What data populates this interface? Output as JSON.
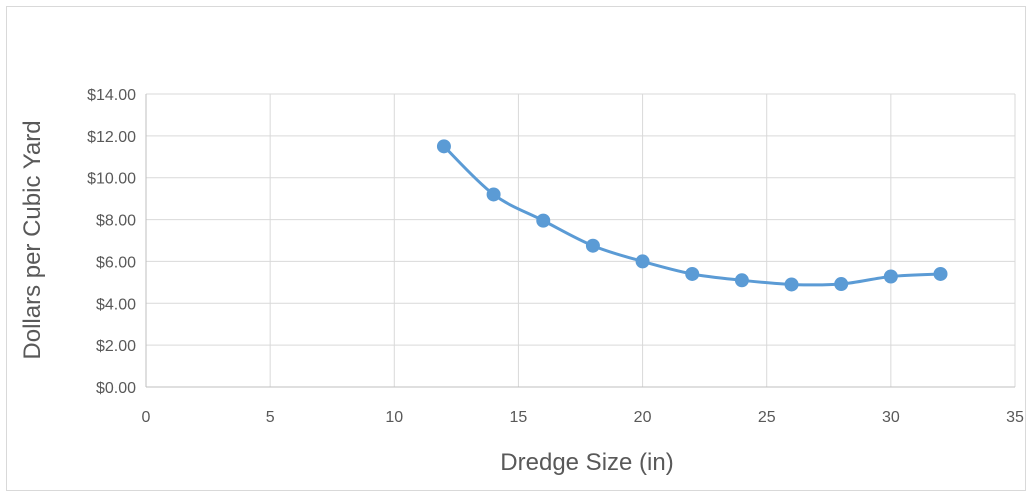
{
  "chart_data": {
    "type": "scatter",
    "title": "",
    "xlabel": "Dredge Size (in)",
    "ylabel": "Dollars per Cubic Yard",
    "xlim": [
      0,
      35
    ],
    "ylim": [
      0,
      14
    ],
    "x_ticks": [
      "0",
      "5",
      "10",
      "15",
      "20",
      "25",
      "30",
      "35"
    ],
    "y_ticks": [
      "$0.00",
      "$2.00",
      "$4.00",
      "$6.00",
      "$8.00",
      "$10.00",
      "$12.00",
      "$14.00"
    ],
    "grid": true,
    "legend": "none",
    "line_color": "#5B9BD5",
    "series": [
      {
        "x": [
          12,
          14,
          16,
          18,
          20,
          22,
          24,
          26,
          28,
          30,
          32
        ],
        "values": [
          11.5,
          9.2,
          7.95,
          6.75,
          6.0,
          5.4,
          5.1,
          4.9,
          4.92,
          5.28,
          5.4
        ]
      }
    ]
  }
}
